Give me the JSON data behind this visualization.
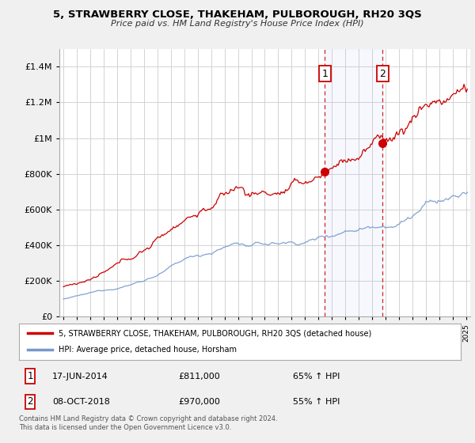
{
  "title": "5, STRAWBERRY CLOSE, THAKEHAM, PULBOROUGH, RH20 3QS",
  "subtitle": "Price paid vs. HM Land Registry's House Price Index (HPI)",
  "legend_house": "5, STRAWBERRY CLOSE, THAKEHAM, PULBOROUGH, RH20 3QS (detached house)",
  "legend_hpi": "HPI: Average price, detached house, Horsham",
  "sale1_date": "17-JUN-2014",
  "sale1_price": "£811,000",
  "sale1_hpi": "65% ↑ HPI",
  "sale2_date": "08-OCT-2018",
  "sale2_price": "£970,000",
  "sale2_hpi": "55% ↑ HPI",
  "footer": "Contains HM Land Registry data © Crown copyright and database right 2024.\nThis data is licensed under the Open Government Licence v3.0.",
  "house_color": "#cc0000",
  "hpi_color": "#7799cc",
  "sale1_x": 2014.46,
  "sale1_y": 811000,
  "sale2_x": 2018.77,
  "sale2_y": 970000,
  "vline1_x": 2014.46,
  "vline2_x": 2018.77,
  "ylim": [
    0,
    1500000
  ],
  "xlim": [
    1994.7,
    2025.3
  ],
  "yticks": [
    0,
    200000,
    400000,
    600000,
    800000,
    1000000,
    1200000,
    1400000
  ],
  "ytick_labels": [
    "£0",
    "£200K",
    "£400K",
    "£600K",
    "£800K",
    "£1M",
    "£1.2M",
    "£1.4M"
  ],
  "background_color": "#f0f0f0",
  "plot_bg": "#ffffff"
}
